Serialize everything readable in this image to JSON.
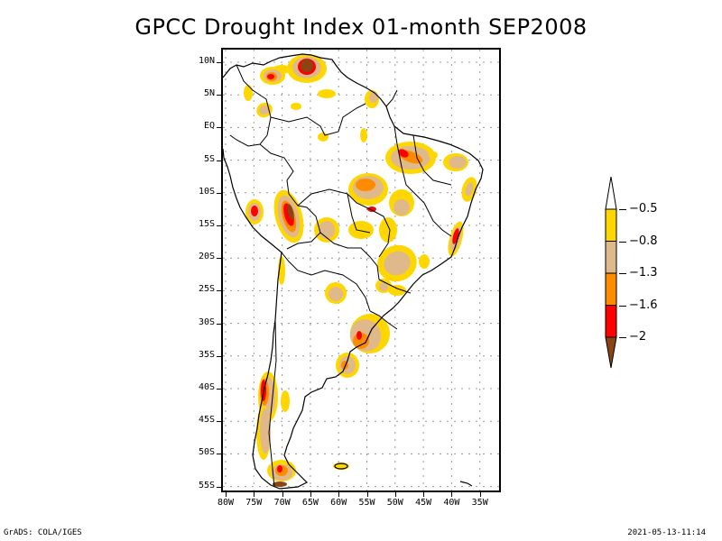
{
  "title": "GPCC Drought Index 01-month SEP2008",
  "map": {
    "region": "South America",
    "lat_labels": [
      "10N",
      "5N",
      "EQ",
      "5S",
      "10S",
      "15S",
      "20S",
      "25S",
      "30S",
      "35S",
      "40S",
      "45S",
      "50S",
      "55S"
    ],
    "lon_labels": [
      "80W",
      "75W",
      "70W",
      "65W",
      "60W",
      "55W",
      "50W",
      "45W",
      "40W",
      "35W"
    ],
    "lat_range": [
      -56,
      12
    ],
    "lon_range": [
      -81,
      -32
    ],
    "gridlines": "dotted",
    "drought_areas": [
      {
        "name": "northern-venezuela",
        "max_class": "extreme"
      },
      {
        "name": "colombia-venezuela-border",
        "max_class": "severe"
      },
      {
        "name": "northeast-brazil-maranhao",
        "max_class": "severe"
      },
      {
        "name": "central-brazil-mato-grosso",
        "max_class": "moderate"
      },
      {
        "name": "peru-bolivia-andes",
        "max_class": "extreme"
      },
      {
        "name": "southern-peru",
        "max_class": "severe"
      },
      {
        "name": "eastern-brazil-coast",
        "max_class": "severe"
      },
      {
        "name": "uruguay-southern-brazil",
        "max_class": "severe"
      },
      {
        "name": "southern-chile",
        "max_class": "severe"
      },
      {
        "name": "tierra-del-fuego",
        "max_class": "extreme"
      }
    ]
  },
  "legend": {
    "labels": [
      "-0.5",
      "-0.8",
      "-1.3",
      "-1.6",
      "-2"
    ],
    "colors": [
      "#ffffff",
      "#ffd700",
      "#dfb98a",
      "#ff8c00",
      "#ff0000",
      "#8b4513"
    ]
  },
  "footer": {
    "left": "GrADS: COLA/IGES",
    "right": "2021-05-13-11:14"
  }
}
